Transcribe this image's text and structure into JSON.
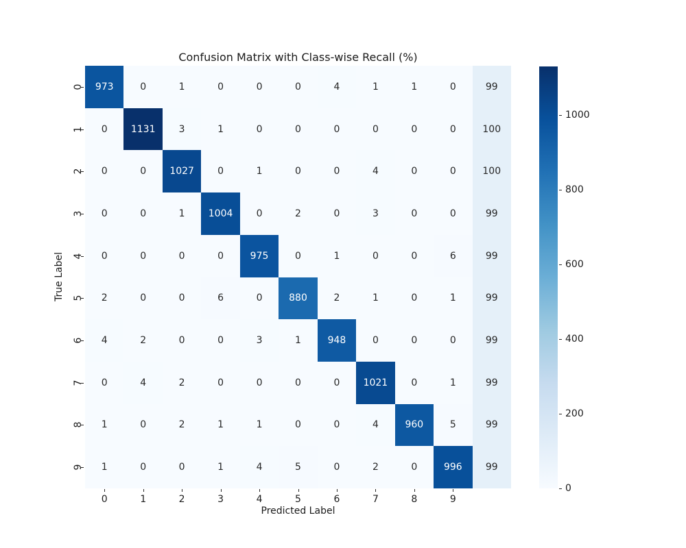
{
  "chart_data": {
    "type": "heatmap",
    "title": "Confusion Matrix with Class-wise Recall (%)",
    "xlabel": "Predicted Label",
    "ylabel": "True Label",
    "x_tick_labels": [
      "0",
      "1",
      "2",
      "3",
      "4",
      "5",
      "6",
      "7",
      "8",
      "9"
    ],
    "y_tick_labels": [
      "0",
      "1",
      "2",
      "3",
      "4",
      "5",
      "6",
      "7",
      "8",
      "9"
    ],
    "matrix": [
      [
        973,
        0,
        1,
        0,
        0,
        0,
        4,
        1,
        1,
        0
      ],
      [
        0,
        1131,
        3,
        1,
        0,
        0,
        0,
        0,
        0,
        0
      ],
      [
        0,
        0,
        1027,
        0,
        1,
        0,
        0,
        4,
        0,
        0
      ],
      [
        0,
        0,
        1,
        1004,
        0,
        2,
        0,
        3,
        0,
        0
      ],
      [
        0,
        0,
        0,
        0,
        975,
        0,
        1,
        0,
        0,
        6
      ],
      [
        2,
        0,
        0,
        6,
        0,
        880,
        2,
        1,
        0,
        1
      ],
      [
        4,
        2,
        0,
        0,
        3,
        1,
        948,
        0,
        0,
        0
      ],
      [
        0,
        4,
        2,
        0,
        0,
        0,
        0,
        1021,
        0,
        1
      ],
      [
        1,
        0,
        2,
        1,
        1,
        0,
        0,
        4,
        960,
        5
      ],
      [
        1,
        0,
        0,
        1,
        4,
        5,
        0,
        2,
        0,
        996
      ]
    ],
    "recall_percent": [
      99,
      100,
      100,
      99,
      99,
      99,
      99,
      99,
      99,
      99
    ],
    "colormap": "Blues",
    "vmin": 0,
    "vmax": 1131,
    "colorbar_ticks": [
      0,
      200,
      400,
      600,
      800,
      1000
    ],
    "annotations": true,
    "grid": false,
    "colorbar_position": "right",
    "colors": {
      "background": "#ffffff",
      "max_cell": "#08306b",
      "min_cell": "#f7fbff",
      "dark_text": "#262626",
      "light_text": "#ffffff"
    }
  }
}
